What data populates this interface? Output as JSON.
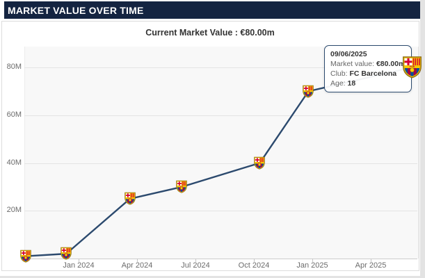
{
  "header": {
    "title": "MARKET VALUE OVER TIME"
  },
  "subtitle": "Current Market Value : €80.00m",
  "chart_data": {
    "type": "line",
    "series": [
      {
        "name": "Market value",
        "points": [
          {
            "date": "10/10/2023",
            "value_m": 1
          },
          {
            "date": "12/12/2023",
            "value_m": 2
          },
          {
            "date": "20/03/2024",
            "value_m": 25
          },
          {
            "date": "10/06/2024",
            "value_m": 30
          },
          {
            "date": "10/10/2024",
            "value_m": 40
          },
          {
            "date": "25/12/2024",
            "value_m": 70
          },
          {
            "date": "09/06/2025",
            "value_m": 80,
            "highlight": true
          }
        ]
      }
    ],
    "x_ticks": [
      "Jan 2024",
      "Apr 2024",
      "Jul 2024",
      "Oct 2024",
      "Jan 2025",
      "Apr 2025"
    ],
    "y_ticks": [
      {
        "value_m": 20,
        "label": "20M"
      },
      {
        "value_m": 40,
        "label": "40M"
      },
      {
        "value_m": 60,
        "label": "60M"
      },
      {
        "value_m": 80,
        "label": "80M"
      }
    ],
    "ylim_m": [
      0,
      88
    ],
    "grid": "horizontal",
    "legend": "none",
    "marker": "fc-barcelona-crest"
  },
  "tooltip": {
    "date": "09/06/2025",
    "market_value_label": "Market value: ",
    "market_value": "€80.00m",
    "club_label": "Club: ",
    "club": "FC Barcelona",
    "age_label": "Age: ",
    "age": "18"
  },
  "colors": {
    "header_bg": "#142441",
    "line": "#2c4a6e",
    "grid": "#e4e4e4",
    "axis_text": "#6b6b6b",
    "tooltip_border": "#2c4a6e",
    "plot_bg": "#f8f8f8",
    "crest_blue": "#004d98",
    "crest_garnet": "#a50044",
    "crest_red": "#d50032",
    "crest_yellow": "#ffd400",
    "crest_gold": "#e3b505"
  }
}
